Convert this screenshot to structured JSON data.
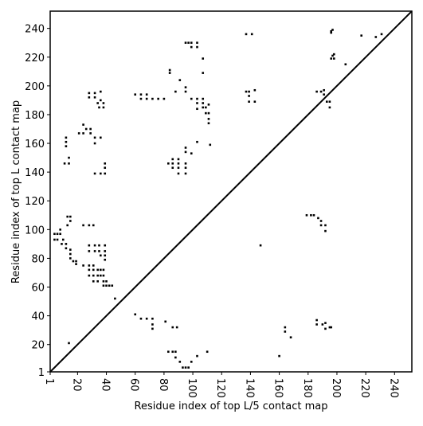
{
  "chart_data": {
    "type": "scatter",
    "xlabel": "Residue index of top L/5 contact map",
    "ylabel": "Residue index of top L contact map",
    "xlim": [
      1,
      252
    ],
    "ylim": [
      1,
      252
    ],
    "xticks": [
      1,
      20,
      40,
      60,
      80,
      100,
      120,
      140,
      160,
      180,
      200,
      220,
      240
    ],
    "yticks": [
      1,
      20,
      40,
      60,
      80,
      100,
      120,
      140,
      160,
      180,
      200,
      220,
      240
    ],
    "color": "#000000",
    "x": [
      4,
      6,
      8,
      4,
      6,
      8,
      10,
      9,
      12,
      12,
      13,
      15,
      15,
      13,
      15,
      15,
      15,
      17,
      19,
      19,
      11,
      14,
      14,
      12,
      12,
      12,
      24,
      28,
      31,
      21,
      24,
      26,
      29,
      29,
      24,
      32,
      36,
      32,
      28,
      28,
      32,
      32,
      36,
      34,
      36,
      38,
      38,
      35,
      32,
      36,
      39,
      39,
      39,
      28,
      28,
      32,
      32,
      35,
      35,
      39,
      39,
      36,
      39,
      39,
      24,
      28,
      31,
      28,
      31,
      34,
      36,
      38,
      28,
      31,
      34,
      36,
      38,
      31,
      34,
      38,
      40,
      38,
      40,
      42,
      44,
      46,
      60,
      64,
      64,
      68,
      68,
      72,
      76,
      80,
      84,
      84,
      88,
      95,
      97,
      99,
      99,
      103,
      103,
      107,
      107,
      91,
      95,
      95,
      99,
      103,
      103,
      107,
      107,
      109,
      111,
      111,
      111,
      103,
      107,
      109,
      111,
      83,
      86,
      86,
      90,
      90,
      86,
      90,
      90,
      95,
      95,
      95,
      95,
      95,
      99,
      103,
      112,
      137,
      141,
      137,
      139,
      139,
      139,
      143,
      143,
      196,
      196,
      197,
      197,
      198,
      196,
      198,
      206,
      217,
      227,
      231,
      186,
      189,
      191,
      191,
      193,
      195,
      195,
      179,
      182,
      184,
      187,
      189,
      189,
      192,
      192,
      147,
      14,
      60,
      64,
      68,
      72,
      72,
      72,
      81,
      86,
      89,
      83,
      86,
      88,
      88,
      91,
      93,
      95,
      97,
      99,
      103,
      110,
      160,
      164,
      164,
      168,
      186,
      186,
      190,
      192,
      192,
      195,
      196
    ],
    "y": [
      97,
      97,
      97,
      93,
      93,
      100,
      93,
      90,
      90,
      87,
      109,
      109,
      106,
      103,
      86,
      83,
      80,
      78,
      78,
      76,
      146,
      146,
      150,
      158,
      161,
      164,
      103,
      103,
      103,
      167,
      167,
      170,
      167,
      170,
      173,
      160,
      164,
      164,
      192,
      195,
      192,
      195,
      196,
      188,
      190,
      188,
      185,
      185,
      139,
      139,
      139,
      143,
      146,
      89,
      85,
      89,
      85,
      89,
      85,
      89,
      85,
      82,
      82,
      79,
      75,
      75,
      75,
      72,
      72,
      72,
      72,
      72,
      68,
      68,
      68,
      68,
      68,
      64,
      64,
      64,
      64,
      61,
      61,
      61,
      61,
      52,
      194,
      191,
      194,
      191,
      194,
      191,
      191,
      191,
      209,
      211,
      196,
      230,
      230,
      230,
      227,
      227,
      230,
      219,
      209,
      204,
      199,
      196,
      191,
      191,
      188,
      188,
      185,
      185,
      181,
      177,
      174,
      184,
      191,
      181,
      187,
      146,
      146,
      149,
      146,
      149,
      143,
      143,
      139,
      146,
      143,
      139,
      154,
      157,
      153,
      161,
      159,
      236,
      236,
      196,
      196,
      193,
      189,
      189,
      197,
      237,
      238,
      239,
      221,
      219,
      219,
      222,
      215,
      235,
      234,
      236,
      196,
      196,
      194,
      197,
      189,
      189,
      185,
      110,
      110,
      110,
      108,
      106,
      103,
      103,
      99,
      89,
      21,
      41,
      38,
      38,
      38,
      34,
      31,
      36,
      32,
      32,
      15,
      15,
      15,
      11,
      8,
      4,
      4,
      4,
      8,
      12,
      15,
      12,
      29,
      32,
      25,
      37,
      34,
      34,
      31,
      35,
      32,
      32
    ]
  }
}
